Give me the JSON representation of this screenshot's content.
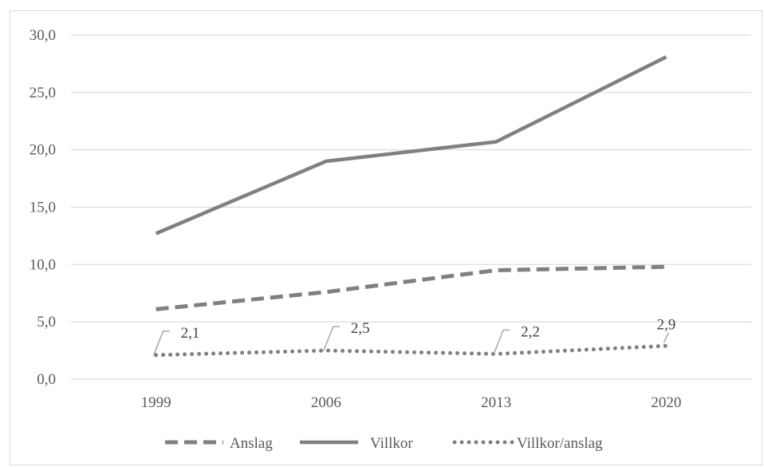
{
  "chart_data": {
    "type": "line",
    "categories": [
      "1999",
      "2006",
      "2013",
      "2020"
    ],
    "ylim": [
      0,
      30
    ],
    "yticks": [
      "0,0",
      "5,0",
      "10,0",
      "15,0",
      "20,0",
      "25,0",
      "30,0"
    ],
    "grid": true,
    "legend_position": "bottom",
    "series": [
      {
        "name": "Anslag",
        "style": "dashed",
        "color": "#808080",
        "values": [
          6.1,
          7.6,
          9.5,
          9.8
        ]
      },
      {
        "name": "Villkor",
        "style": "solid",
        "color": "#808080",
        "values": [
          12.7,
          19.0,
          20.7,
          28.1
        ]
      },
      {
        "name": "Villkor/anslag",
        "style": "dotted",
        "color": "#808080",
        "values": [
          2.1,
          2.5,
          2.2,
          2.9
        ],
        "data_labels": [
          "2,1",
          "2,5",
          "2,2",
          "2,9"
        ]
      }
    ]
  }
}
